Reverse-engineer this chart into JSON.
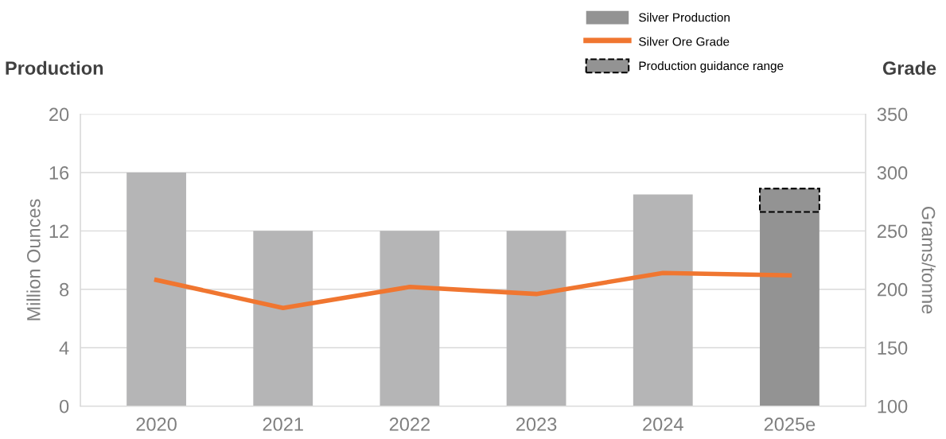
{
  "chart_data": {
    "type": "bar",
    "categories": [
      "2020",
      "2021",
      "2022",
      "2023",
      "2024",
      "2025e"
    ],
    "ylabel": "Million Ounces",
    "y2label": "Grams/tonne",
    "annotations": [
      "Production",
      "Grade"
    ],
    "series": [
      {
        "name": "Silver Production",
        "type": "bar",
        "colors": [
          "#b5b5b6",
          "#b5b5b6",
          "#b5b5b6",
          "#b5b5b6",
          "#b5b5b6",
          "#939393"
        ],
        "values": [
          16,
          12,
          12,
          12,
          14.5,
          13.3
        ]
      },
      {
        "name": "Silver Ore Grade",
        "type": "line",
        "axis": "y2",
        "color": "#f07630",
        "values": [
          208,
          184,
          202,
          196,
          214,
          212
        ]
      },
      {
        "name": "Production guidance range",
        "type": "bar",
        "color": "#939393",
        "line_style": "dashed",
        "base": [
          null,
          null,
          null,
          null,
          null,
          13.3
        ],
        "values": [
          null,
          null,
          null,
          null,
          null,
          1.6
        ]
      }
    ],
    "ylim": [
      0,
      20
    ],
    "yticks": [
      0,
      4,
      8,
      12,
      16,
      20
    ],
    "y2lim": [
      100,
      350
    ],
    "y2ticks": [
      100,
      150,
      200,
      250,
      300,
      350
    ],
    "grid": "y",
    "legend": "top right"
  }
}
